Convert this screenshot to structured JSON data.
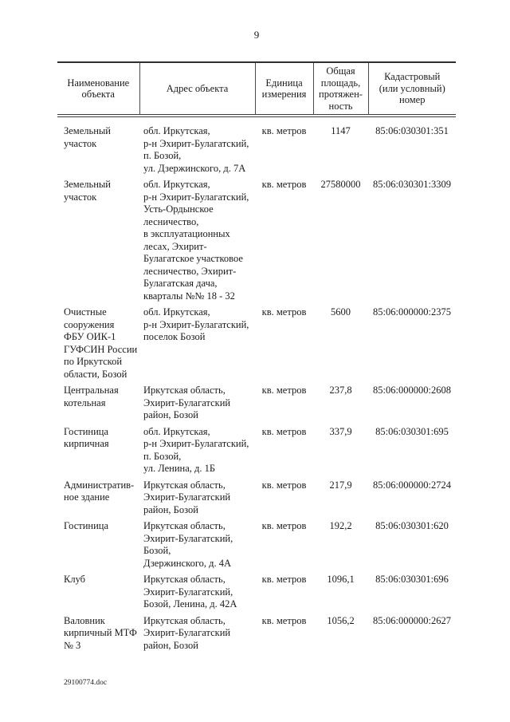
{
  "page": {
    "number": "9",
    "footer": "29100774.doc"
  },
  "table": {
    "headers": {
      "name": "Наименование\nобъекта",
      "address": "Адрес объекта",
      "unit": "Единица\nизмерения",
      "area": "Общая\nплощадь,\nпротяжен-\nность",
      "cadastral": "Кадастровый\n(или условный)\nномер"
    },
    "rows": [
      {
        "name": "Земельный\nучасток",
        "address": "обл. Иркутская,\nр-н Эхирит-Булагатский,\nп. Бозой,\nул. Дзержинского, д. 7А",
        "unit": "кв. метров",
        "area": "1147",
        "cadastral": "85:06:030301:351"
      },
      {
        "name": "Земельный\nучасток",
        "address": "обл. Иркутская,\nр-н Эхирит-Булагатский,\nУсть-Ордынское\nлесничество,\nв эксплуатационных\nлесах, Эхирит-\nБулагатское участковое\nлесничество, Эхирит-\nБулагатская дача,\nкварталы №№ 18 - 32",
        "unit": "кв. метров",
        "area": "27580000",
        "cadastral": "85:06:030301:3309"
      },
      {
        "name": "Очистные\nсооружения\nФБУ ОИК-1\nГУФСИН России\nпо Иркутской\nобласти, Бозой",
        "address": "обл. Иркутская,\nр-н Эхирит-Булагатский,\nпоселок Бозой",
        "unit": "кв. метров",
        "area": "5600",
        "cadastral": "85:06:000000:2375"
      },
      {
        "name": "Центральная\nкотельная",
        "address": "Иркутская область,\nЭхирит-Булагатский\nрайон, Бозой",
        "unit": "кв. метров",
        "area": "237,8",
        "cadastral": "85:06:000000:2608"
      },
      {
        "name": "Гостиница\nкирпичная",
        "address": "обл. Иркутская,\nр-н Эхирит-Булагатский,\nп. Бозой,\nул. Ленина, д. 1Б",
        "unit": "кв. метров",
        "area": "337,9",
        "cadastral": "85:06:030301:695"
      },
      {
        "name": "Административ-\nное здание",
        "address": "Иркутская область,\nЭхирит-Булагатский\nрайон, Бозой",
        "unit": "кв. метров",
        "area": "217,9",
        "cadastral": "85:06:000000:2724"
      },
      {
        "name": "Гостиница",
        "address": "Иркутская область,\nЭхирит-Булагатский,\nБозой,\nДзержинского, д. 4А",
        "unit": "кв. метров",
        "area": "192,2",
        "cadastral": "85:06:030301:620"
      },
      {
        "name": "Клуб",
        "address": "Иркутская область,\nЭхирит-Булагатский,\nБозой, Ленина, д. 42А",
        "unit": "кв. метров",
        "area": "1096,1",
        "cadastral": "85:06:030301:696"
      },
      {
        "name": "Валовник\nкирпичный МТФ\n№ 3",
        "address": "Иркутская область,\nЭхирит-Булагатский\nрайон, Бозой",
        "unit": "кв. метров",
        "area": "1056,2",
        "cadastral": "85:06:000000:2627"
      }
    ]
  }
}
